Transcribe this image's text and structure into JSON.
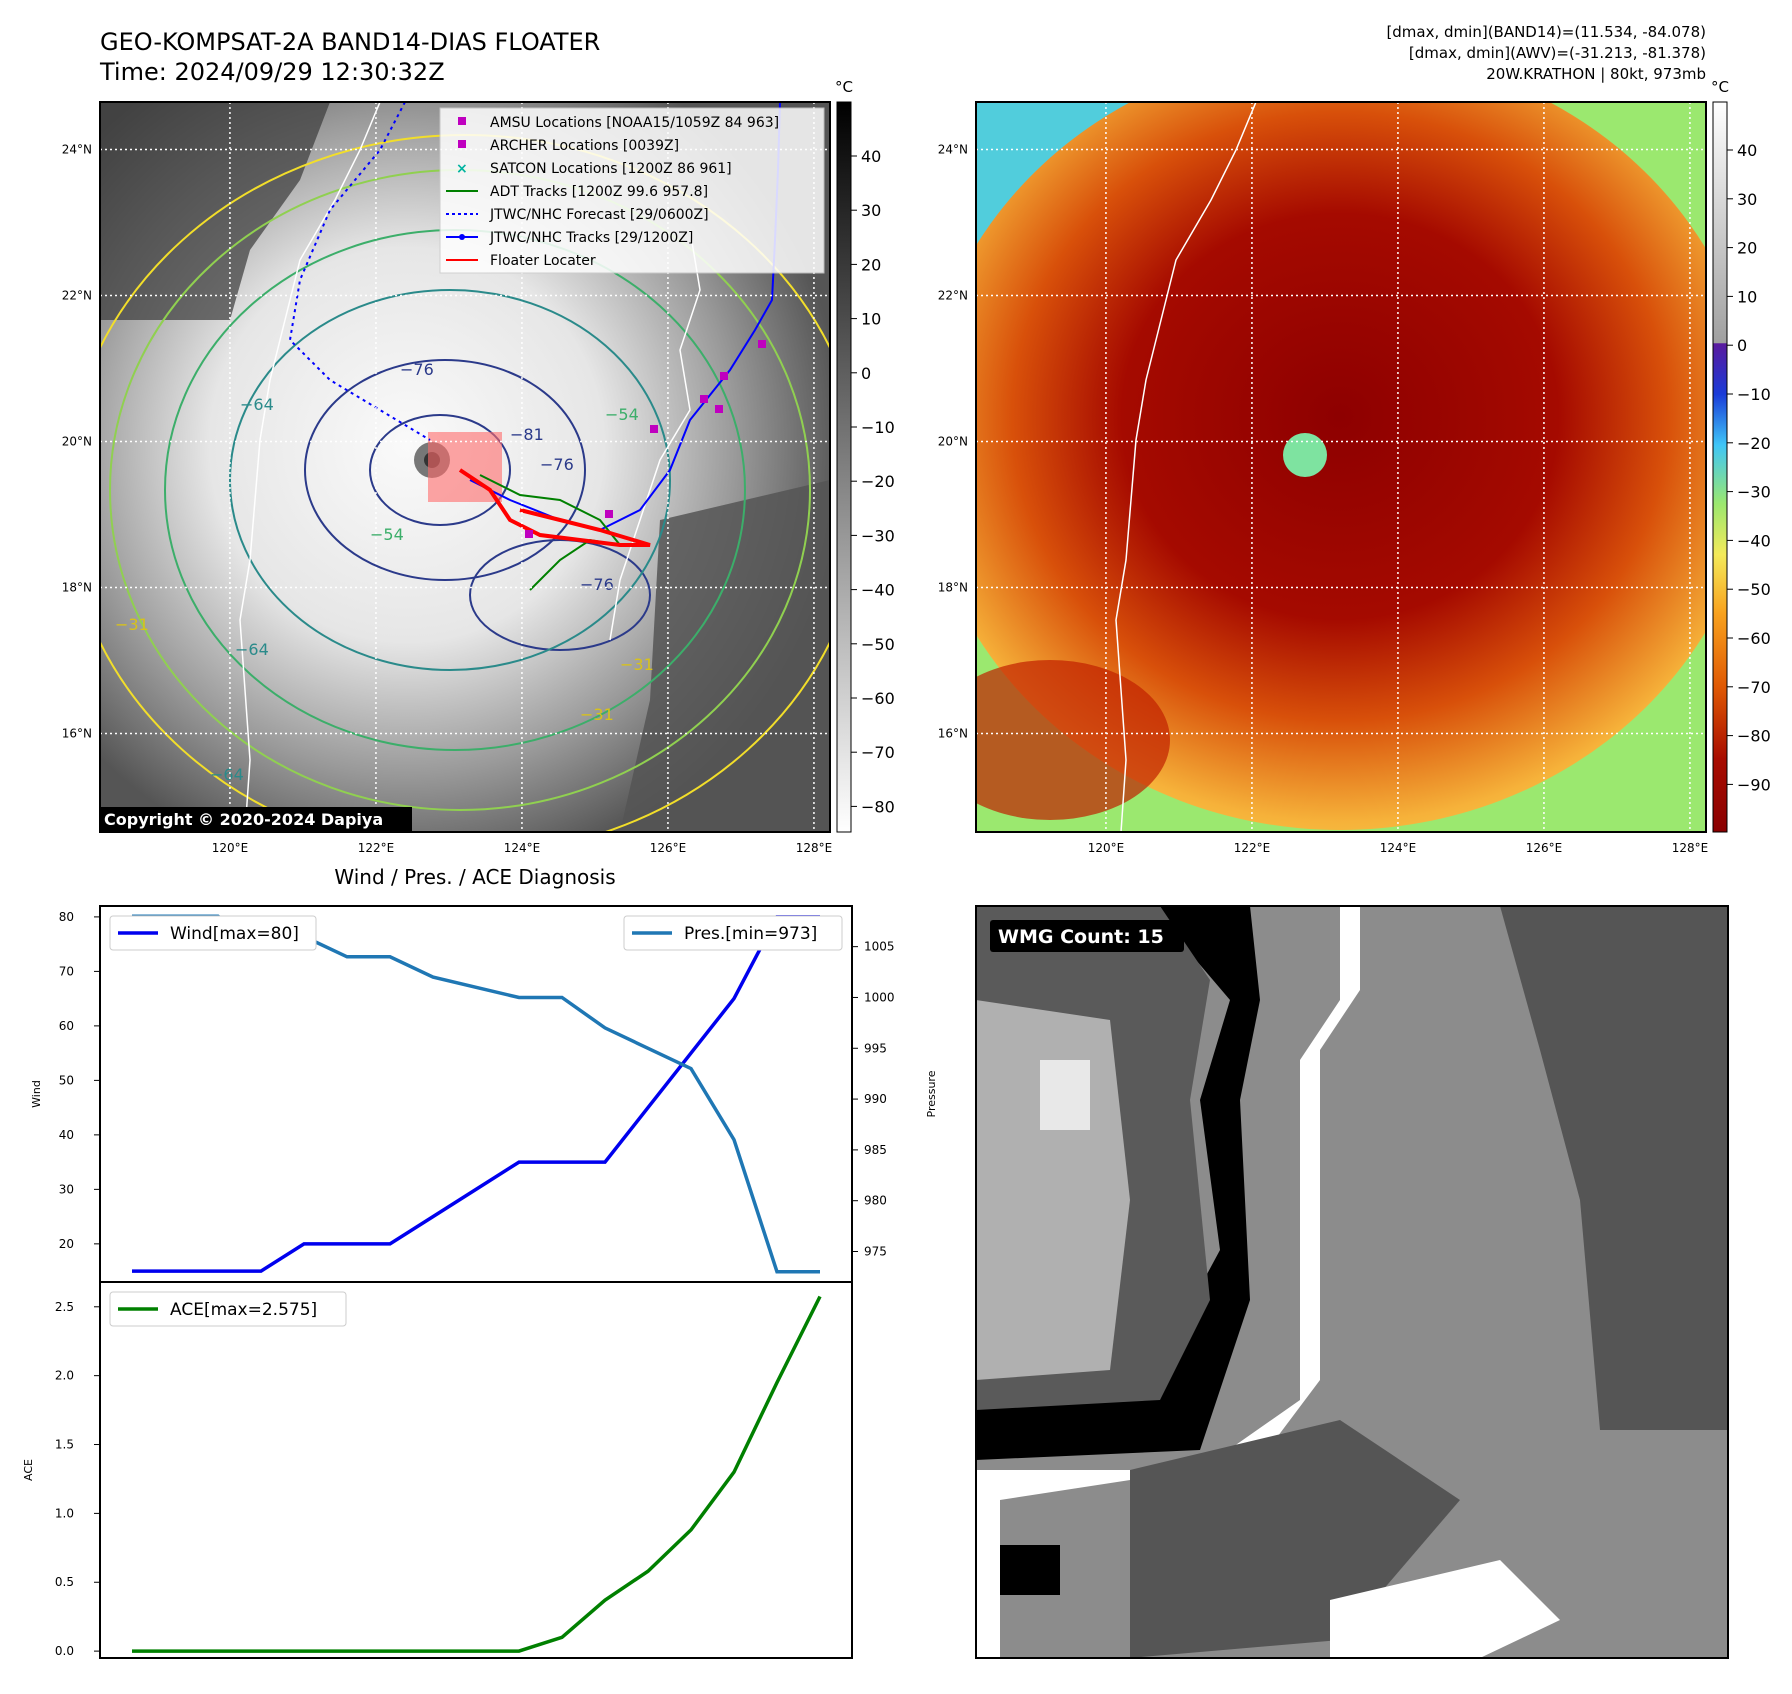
{
  "header": {
    "title_line1": "GEO-KOMPSAT-2A BAND14-DIAS FLOATER",
    "title_line2": "Time: 2024/09/29 12:30:32Z",
    "info_line1": "[dmax, dmin](BAND14)=(11.534, -84.078)",
    "info_line2": "[dmax, dmin](AWV)=(-31.213, -81.378)",
    "info_line3": "20W.KRATHON | 80kt, 973mb"
  },
  "maps": {
    "lon_ticks": [
      "120°E",
      "122°E",
      "124°E",
      "126°E",
      "128°E"
    ],
    "lat_ticks": [
      "24°N",
      "22°N",
      "20°N",
      "18°N",
      "16°N"
    ],
    "unit": "°C",
    "copyright": "Copyright © 2020-2024 Dapiya",
    "ir_colorbar_ticks": [
      "40",
      "30",
      "20",
      "10",
      "0",
      "−10",
      "−20",
      "−30",
      "−40",
      "−50",
      "−60",
      "−70",
      "−80"
    ],
    "wv_colorbar_ticks": [
      "40",
      "30",
      "20",
      "10",
      "0",
      "−10",
      "−20",
      "−30",
      "−40",
      "−50",
      "−60",
      "−70",
      "−80",
      "−90"
    ],
    "contour_labels": [
      "−76",
      "−76",
      "−76",
      "−81",
      "−64",
      "−64",
      "−64",
      "−54",
      "−54",
      "−31",
      "−31",
      "−31"
    ],
    "legend": [
      "AMSU Locations [NOAA15/1059Z 84 963]",
      "ARCHER Locations [0039Z]",
      "SATCON Locations [1200Z 86 961]",
      "ADT Tracks [1200Z 99.6 957.8]",
      "JTWC/NHC Forecast [29/0600Z]",
      "JTWC/NHC Tracks [29/1200Z]",
      "Floater Locater"
    ],
    "wmg_count": "WMG Count: 15"
  },
  "colors": {
    "wind": "#0000ee",
    "pressure": "#1f77b4",
    "ace": "#008000",
    "track": "#0000ff",
    "locater": "#ff0000",
    "amsu": "#bf00bf",
    "satcon": "#00b3a0"
  },
  "chart_data": [
    {
      "type": "line",
      "title": "Wind / Pres. / ACE Diagnosis",
      "ylabel": "Wind",
      "ylabel_right": "Pressure",
      "ylim": [
        13,
        82
      ],
      "ylim_right": [
        972,
        1009
      ],
      "yticks": [
        20,
        30,
        40,
        50,
        60,
        70,
        80
      ],
      "yticks_right": [
        975,
        980,
        985,
        990,
        995,
        1000,
        1005
      ],
      "x": [
        0,
        1,
        2,
        3,
        4,
        5,
        6,
        7,
        8,
        9,
        10,
        11,
        12,
        13,
        14,
        15,
        16
      ],
      "series": [
        {
          "name": "Wind[max=80]",
          "values": [
            15,
            15,
            15,
            15,
            20,
            20,
            20,
            25,
            30,
            35,
            35,
            35,
            45,
            55,
            65,
            80,
            80
          ]
        },
        {
          "name": "Pres.[min=973]",
          "values": [
            1008,
            1008,
            1008,
            1005,
            1006,
            1004,
            1004,
            1002,
            1001,
            1000,
            1000,
            997,
            995,
            993,
            986,
            973,
            973
          ]
        }
      ]
    },
    {
      "type": "line",
      "ylabel": "ACE",
      "ylim": [
        -0.05,
        2.68
      ],
      "yticks": [
        0.0,
        0.5,
        1.0,
        1.5,
        2.0,
        2.5
      ],
      "x": [
        0,
        1,
        2,
        3,
        4,
        5,
        6,
        7,
        8,
        9,
        10,
        11,
        12,
        13,
        14,
        15,
        16
      ],
      "series": [
        {
          "name": "ACE[max=2.575]",
          "values": [
            0,
            0,
            0,
            0,
            0,
            0,
            0,
            0,
            0,
            0.0,
            0.1,
            0.37,
            0.58,
            0.88,
            1.3,
            1.95,
            2.575
          ]
        }
      ]
    }
  ]
}
